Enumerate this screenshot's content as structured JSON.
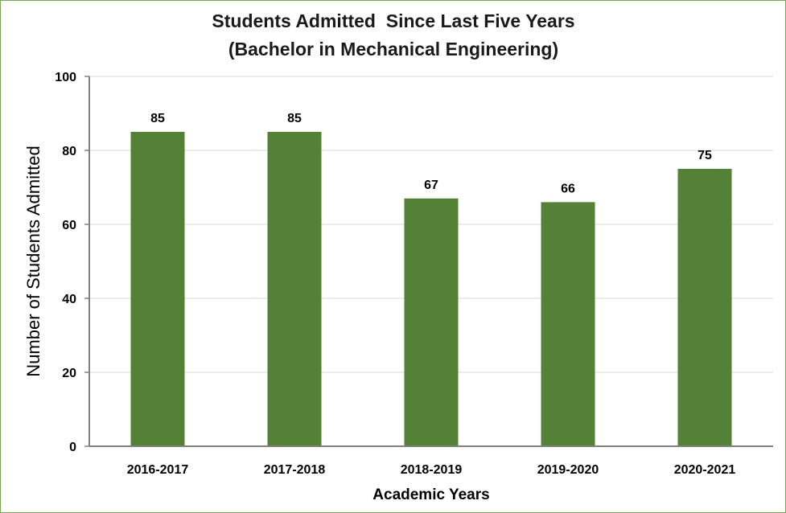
{
  "chart_data": {
    "type": "bar",
    "title": "Students Admitted  Since Last Five Years",
    "subtitle": "(Bachelor in Mechanical Engineering)",
    "xlabel": "Academic Years",
    "ylabel": "Number of Students Admitted",
    "categories": [
      "2016-2017",
      "2017-2018",
      "2018-2019",
      "2019-2020",
      "2020-2021"
    ],
    "values": [
      85,
      85,
      67,
      66,
      75
    ],
    "ylim": [
      0,
      100
    ],
    "yticks": [
      0,
      20,
      40,
      60,
      80,
      100
    ],
    "grid": true,
    "legend": "none",
    "colors": {
      "bar": "#538135",
      "grid": "#d9d9d9",
      "axis": "#808080",
      "frame": "#7aa35c"
    }
  }
}
